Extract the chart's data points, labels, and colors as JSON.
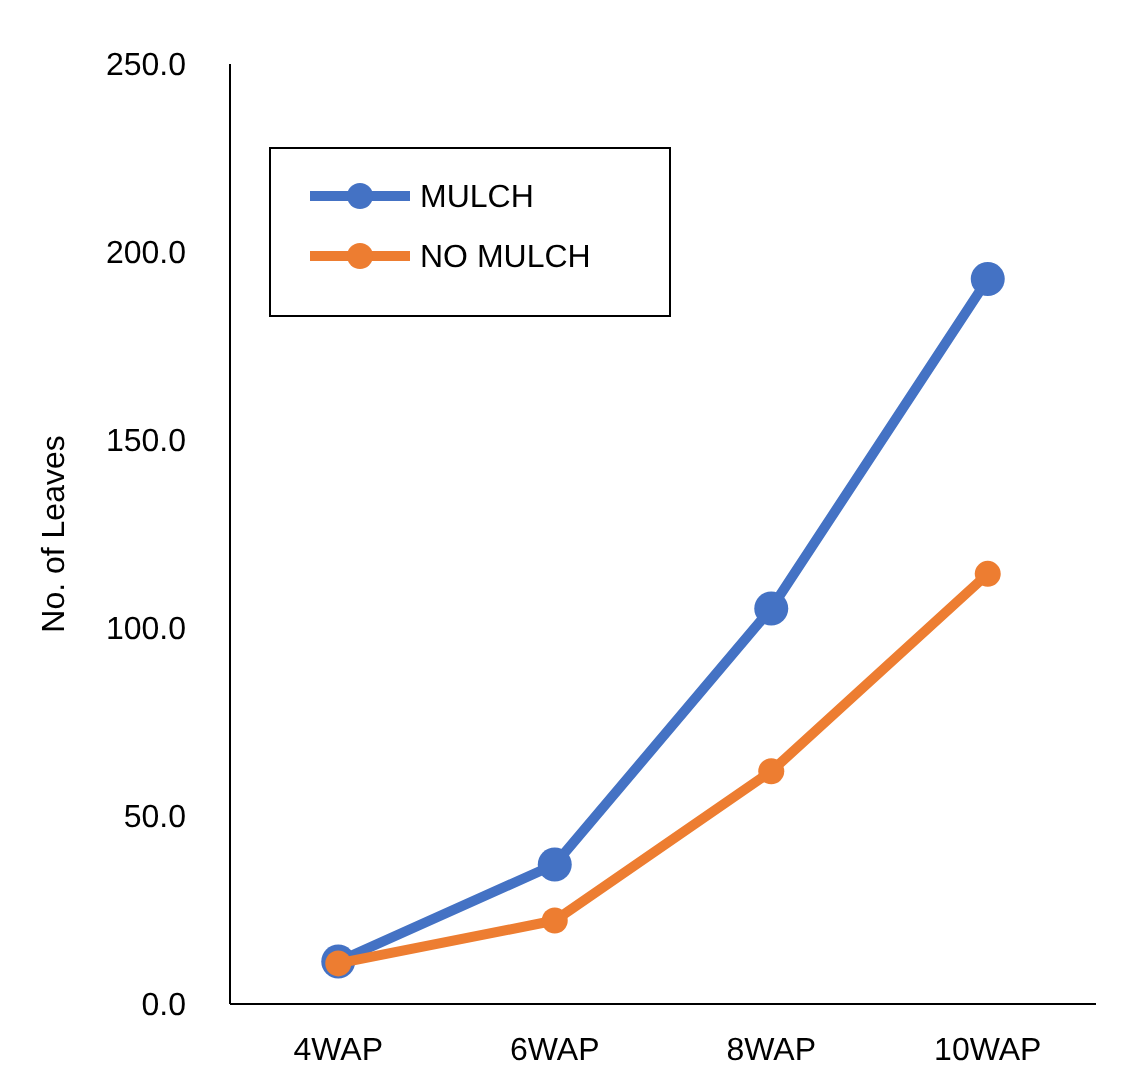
{
  "chart_data": {
    "type": "line",
    "ylabel": "No. of Leaves",
    "categories": [
      "4WAP",
      "6WAP",
      "8WAP",
      "10WAP"
    ],
    "series": [
      {
        "name": "MULCH",
        "color": "#4472c4",
        "values": [
          11.3,
          37.1,
          105.2,
          192.8
        ]
      },
      {
        "name": "NO MULCH",
        "color": "#ed7d31",
        "values": [
          10.8,
          22.2,
          61.9,
          114.4
        ]
      }
    ],
    "ylim": [
      0,
      250
    ],
    "yticks": [
      {
        "value": 0,
        "label": "0.0"
      },
      {
        "value": 50,
        "label": "50.0"
      },
      {
        "value": 100,
        "label": "100.0"
      },
      {
        "value": 150,
        "label": "150.0"
      },
      {
        "value": 200,
        "label": "200.0"
      },
      {
        "value": 250,
        "label": "250.0"
      }
    ],
    "grid": false,
    "legend": "top left",
    "marker": "circle",
    "line_style": "solid"
  }
}
